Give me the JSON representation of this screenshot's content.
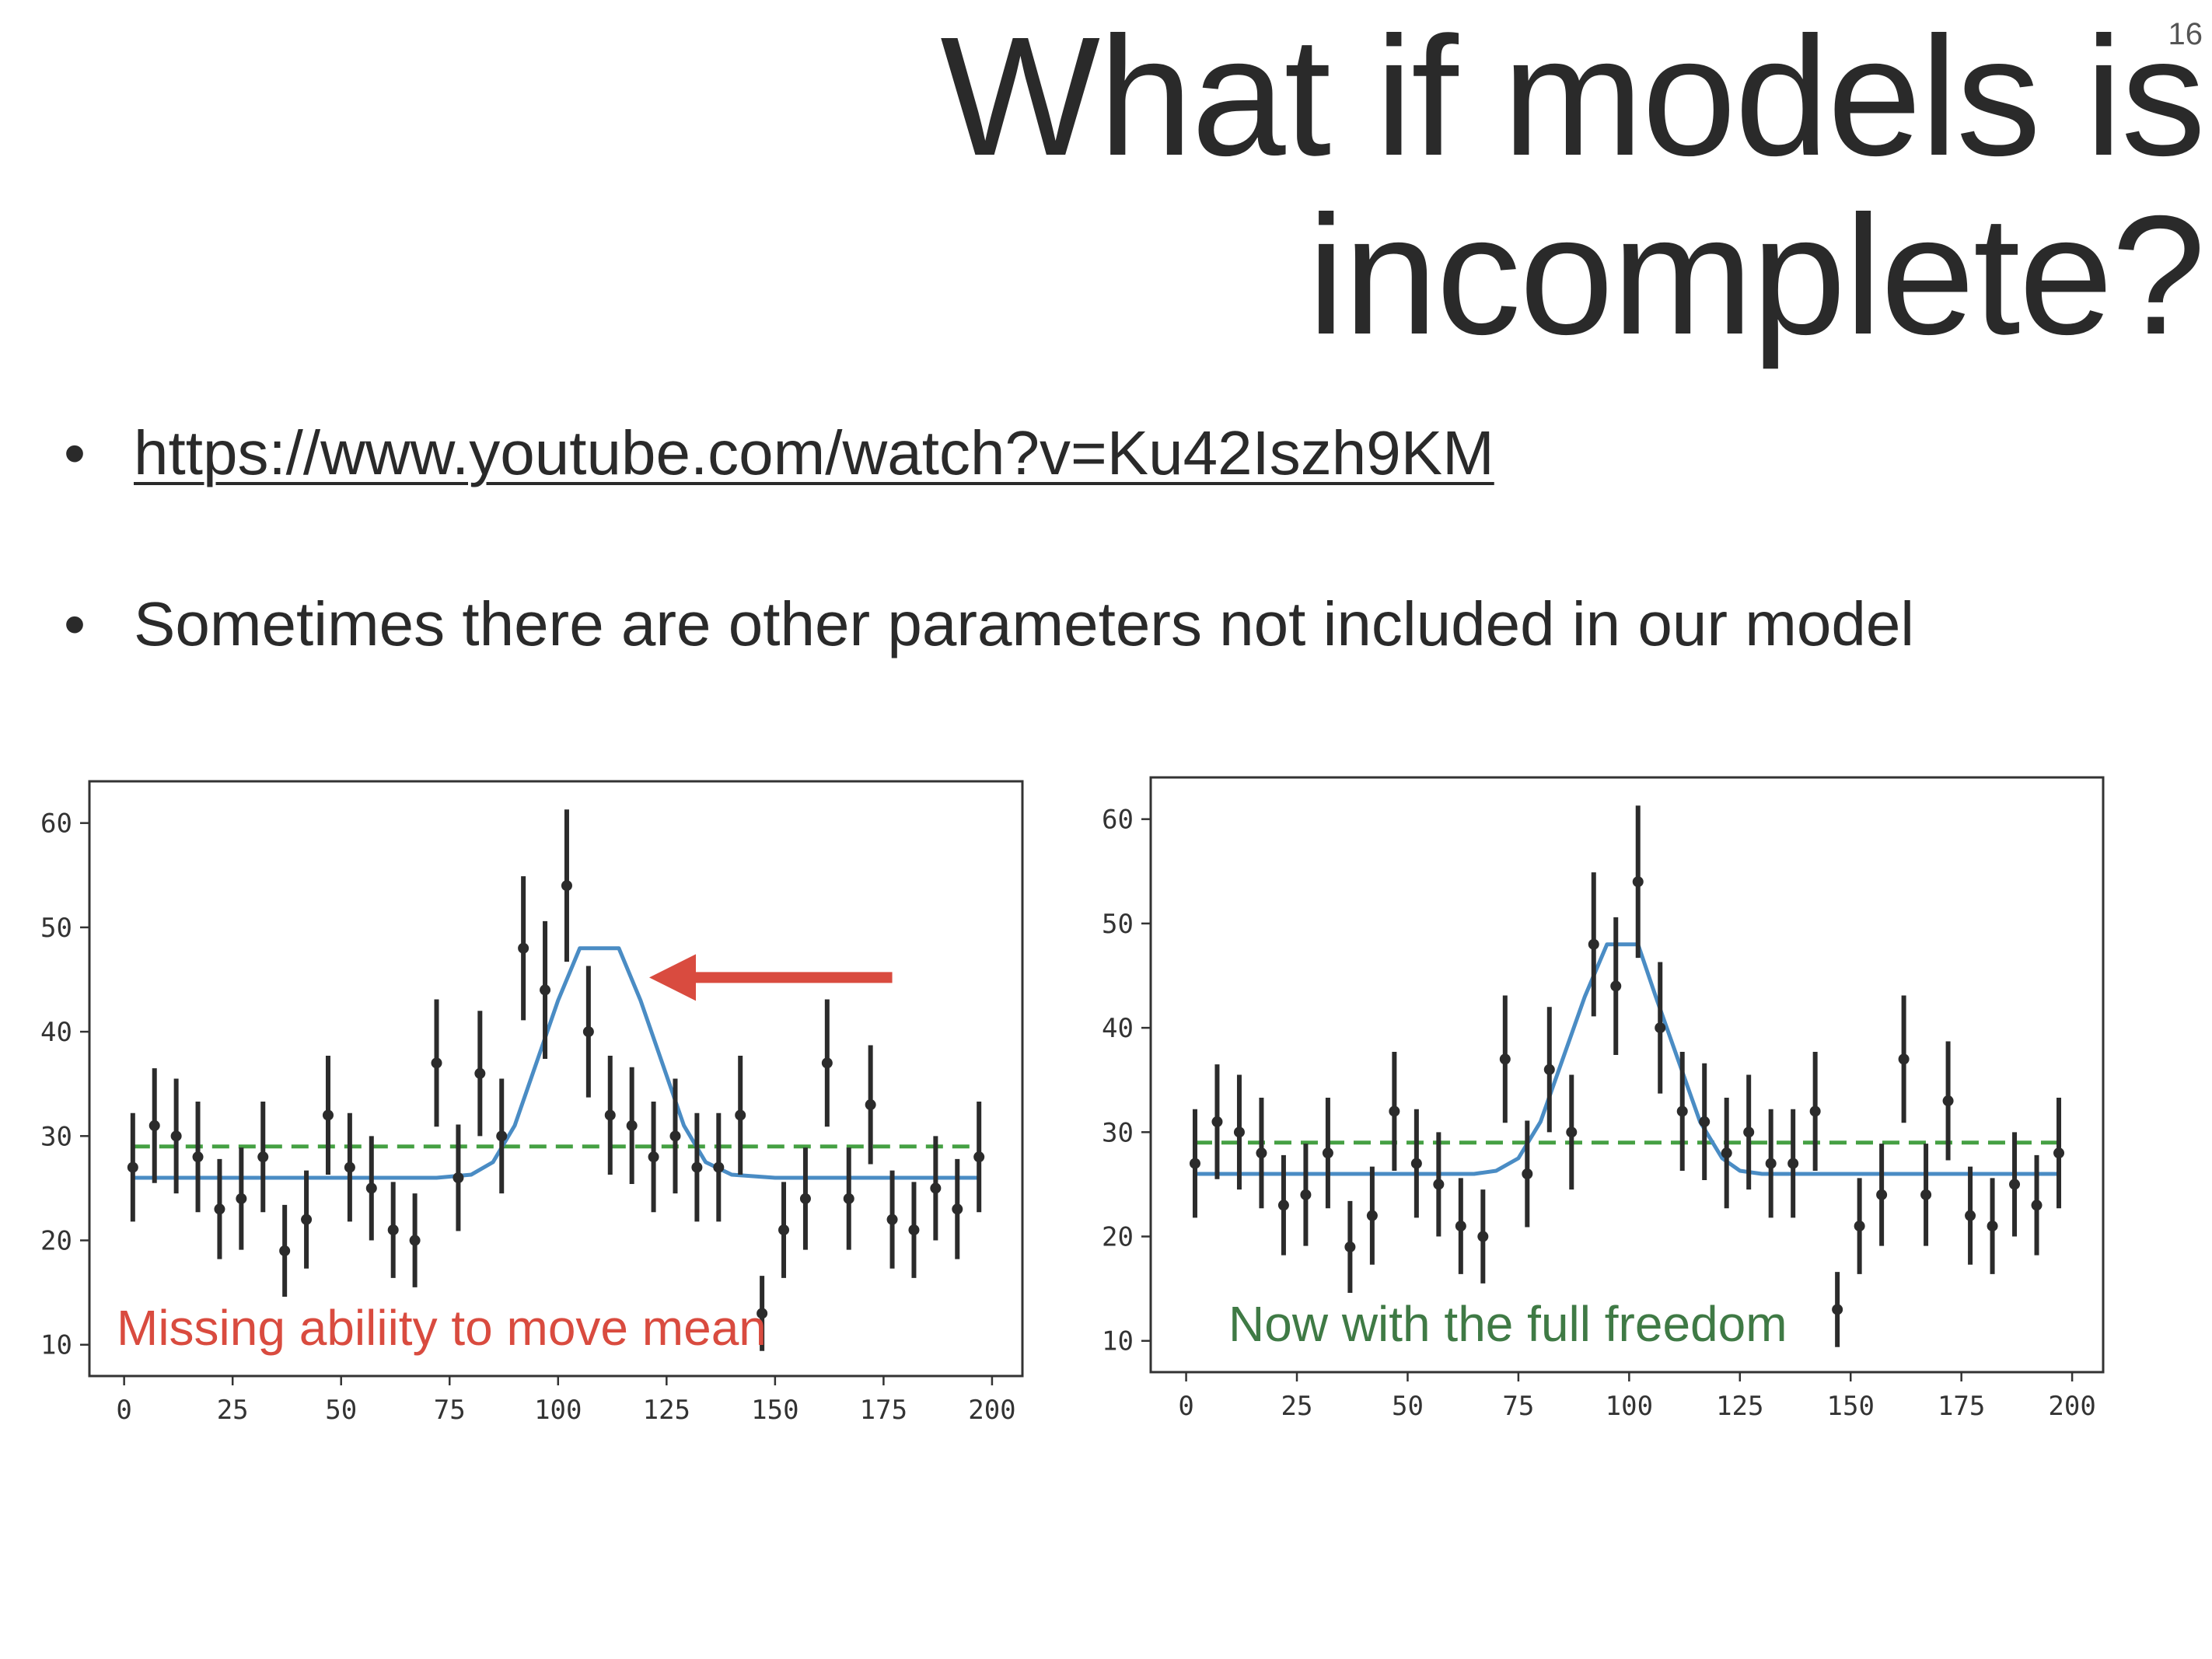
{
  "slide_number": "16",
  "title_lines": [
    "What if models is",
    "incomplete?"
  ],
  "bullets": [
    {
      "text": "https://www.youtube.com/watch?v=Ku42Iszh9KM",
      "is_link": true
    },
    {
      "text": "Sometimes there are other parameters not included in our model",
      "is_link": false
    }
  ],
  "colors": {
    "data_points": "#2b2b2b",
    "model_line": "#4a8cc4",
    "baseline_dashed": "#45a043",
    "arrow": "#d94b3f",
    "left_annotation": "#d94b3f",
    "right_annotation": "#3f7a45"
  },
  "chart_data": [
    {
      "type": "scatter",
      "title": "",
      "xlabel": "",
      "ylabel": "",
      "xlim": [
        -8,
        207
      ],
      "ylim": [
        7,
        64
      ],
      "xticks": [
        0,
        25,
        50,
        75,
        100,
        125,
        150,
        175,
        200
      ],
      "yticks": [
        10,
        20,
        30,
        40,
        50,
        60
      ],
      "grid": false,
      "annotation": "Missing abiliity to move mean",
      "arrow": {
        "from": [
          177,
          45.2
        ],
        "to": [
          121,
          45.2
        ]
      },
      "series": [
        {
          "kind": "errorbar",
          "x": [
            2,
            7,
            12,
            17,
            22,
            27,
            32,
            37,
            42,
            47,
            52,
            57,
            62,
            67,
            72,
            77,
            82,
            87,
            92,
            97,
            102,
            107,
            112,
            117,
            122,
            127,
            132,
            137,
            142,
            147,
            152,
            157,
            162,
            167,
            172,
            177,
            182,
            187,
            192,
            197
          ],
          "y": [
            27,
            31,
            30,
            28,
            23,
            24,
            28,
            19,
            22,
            32,
            27,
            25,
            21,
            20,
            37,
            26,
            36,
            30,
            48,
            44,
            54,
            40,
            32,
            31,
            28,
            30,
            27,
            27,
            32,
            13,
            21,
            24,
            37,
            24,
            33,
            22,
            21,
            25,
            23,
            28
          ],
          "yerr": [
            5.2,
            5.5,
            5.5,
            5.3,
            4.8,
            4.9,
            5.3,
            4.4,
            4.7,
            5.7,
            5.2,
            5,
            4.6,
            4.5,
            6.1,
            5.1,
            6,
            5.5,
            6.9,
            6.6,
            7.3,
            6.3,
            5.7,
            5.6,
            5.3,
            5.5,
            5.2,
            5.2,
            5.7,
            3.6,
            4.6,
            4.9,
            6.1,
            4.9,
            5.7,
            4.7,
            4.6,
            5,
            4.8,
            5.3
          ]
        },
        {
          "kind": "line",
          "x": [
            2,
            60,
            72,
            80,
            85,
            90,
            95,
            100,
            105,
            109,
            114,
            119,
            124,
            129,
            134,
            140,
            150,
            197
          ],
          "y": [
            26,
            26,
            26,
            26.3,
            27.5,
            31,
            37,
            43,
            48,
            48,
            48,
            43,
            37,
            31,
            27.5,
            26.3,
            26,
            26
          ]
        },
        {
          "kind": "dashed",
          "x": [
            2,
            197
          ],
          "y": [
            29,
            29
          ]
        }
      ]
    },
    {
      "type": "scatter",
      "title": "",
      "xlabel": "",
      "ylabel": "",
      "xlim": [
        -8,
        207
      ],
      "ylim": [
        7,
        64
      ],
      "xticks": [
        0,
        25,
        50,
        75,
        100,
        125,
        150,
        175,
        200
      ],
      "yticks": [
        10,
        20,
        30,
        40,
        50,
        60
      ],
      "grid": false,
      "annotation": "Now with the full freedom",
      "series": [
        {
          "kind": "errorbar",
          "x": [
            2,
            7,
            12,
            17,
            22,
            27,
            32,
            37,
            42,
            47,
            52,
            57,
            62,
            67,
            72,
            77,
            82,
            87,
            92,
            97,
            102,
            107,
            112,
            117,
            122,
            127,
            132,
            137,
            142,
            147,
            152,
            157,
            162,
            167,
            172,
            177,
            182,
            187,
            192,
            197
          ],
          "y": [
            27,
            31,
            30,
            28,
            23,
            24,
            28,
            19,
            22,
            32,
            27,
            25,
            21,
            20,
            37,
            26,
            36,
            30,
            48,
            44,
            54,
            40,
            32,
            31,
            28,
            30,
            27,
            27,
            32,
            13,
            21,
            24,
            37,
            24,
            33,
            22,
            21,
            25,
            23,
            28
          ],
          "yerr": [
            5.2,
            5.5,
            5.5,
            5.3,
            4.8,
            4.9,
            5.3,
            4.4,
            4.7,
            5.7,
            5.2,
            5,
            4.6,
            4.5,
            6.1,
            5.1,
            6,
            5.5,
            6.9,
            6.6,
            7.3,
            6.3,
            5.7,
            5.6,
            5.3,
            5.5,
            5.2,
            5.2,
            5.7,
            3.6,
            4.6,
            4.9,
            6.1,
            4.9,
            5.7,
            4.7,
            4.6,
            5,
            4.8,
            5.3
          ]
        },
        {
          "kind": "line",
          "x": [
            2,
            65,
            70,
            75,
            80,
            85,
            90,
            95,
            98,
            102,
            106,
            111,
            116,
            121,
            125,
            130,
            140,
            197
          ],
          "y": [
            26,
            26,
            26.3,
            27.5,
            31,
            37,
            43,
            48,
            48,
            48,
            43,
            37,
            31,
            27.5,
            26.3,
            26,
            26,
            26
          ]
        },
        {
          "kind": "dashed",
          "x": [
            2,
            197
          ],
          "y": [
            29,
            29
          ]
        }
      ]
    }
  ]
}
